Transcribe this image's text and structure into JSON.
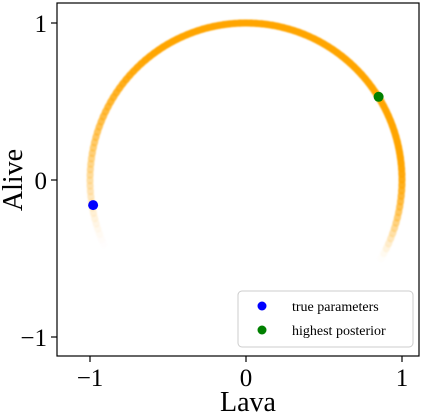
{
  "chart_data": {
    "type": "scatter",
    "title": "",
    "xlabel": "Lava",
    "ylabel": "Alive",
    "xlim": [
      -1.0,
      1.0
    ],
    "ylim": [
      -1.0,
      1.0
    ],
    "xticks": [
      -1,
      0,
      1
    ],
    "xtick_labels": [
      "−1",
      "0",
      "1"
    ],
    "yticks": [
      -1,
      0,
      1
    ],
    "ytick_labels": [
      "−1",
      "0",
      "1"
    ],
    "grid": false,
    "legend_position": "bottom-right",
    "background_density": {
      "shape": "arc",
      "center": [
        0,
        0
      ],
      "radius": 1.0,
      "start_angle_deg": -30,
      "end_angle_deg": 210,
      "color": "#ffa500"
    },
    "series": [
      {
        "name": "true parameters",
        "color": "#0000ff",
        "points": [
          [
            -0.98,
            -0.16
          ]
        ]
      },
      {
        "name": "highest posterior",
        "color": "#008000",
        "points": [
          [
            0.85,
            0.53
          ]
        ]
      }
    ]
  }
}
